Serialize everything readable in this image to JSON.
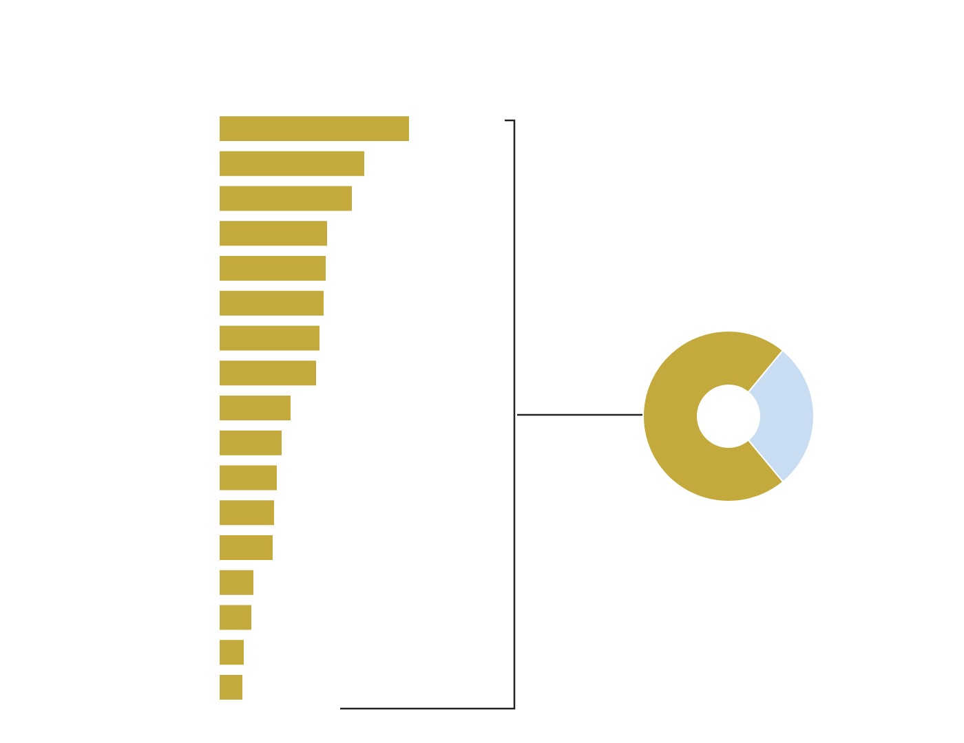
{
  "chart_data": [
    {
      "type": "hbar",
      "color": "#c4aa3d",
      "xlim": [
        0,
        400
      ],
      "values": [
        275,
        210,
        192,
        156,
        154,
        151,
        145,
        140,
        103,
        90,
        83,
        79,
        77,
        49,
        46,
        35,
        33
      ]
    },
    {
      "type": "donut",
      "colors": [
        "#c4aa3d",
        "#c8dcf2"
      ],
      "values": [
        72,
        28
      ]
    }
  ]
}
